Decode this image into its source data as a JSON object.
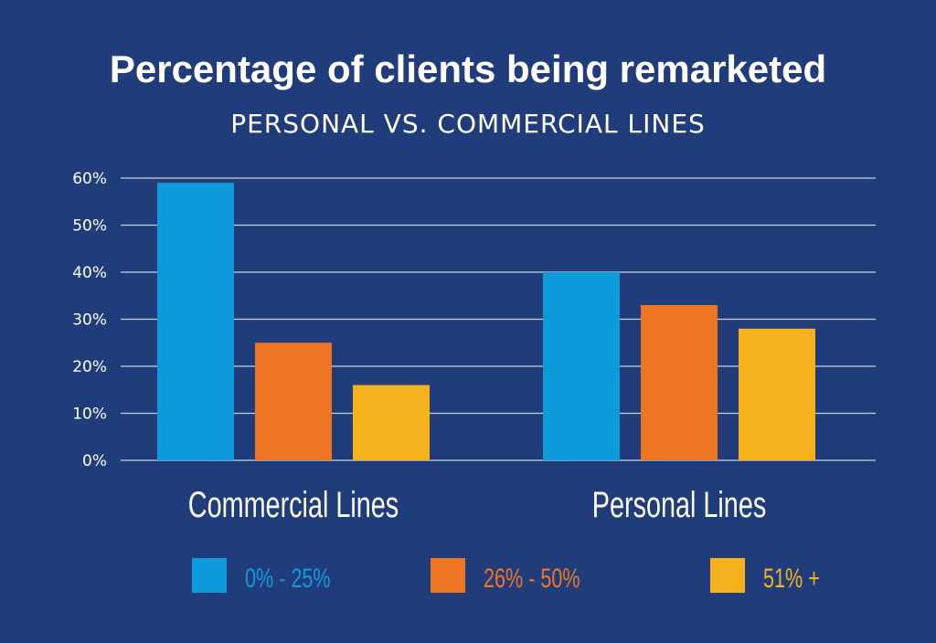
{
  "header": {
    "title": "Percentage of clients being remarketed",
    "subtitle": "PERSONAL VS. COMMERCIAL LINES"
  },
  "chart_data": {
    "type": "bar",
    "title": "Percentage of clients being remarketed",
    "subtitle": "PERSONAL VS. COMMERCIAL LINES",
    "categories": [
      "Commercial Lines",
      "Personal Lines"
    ],
    "series": [
      {
        "name": "0% - 25%",
        "color": "#0f9bdb",
        "values": [
          59,
          40
        ]
      },
      {
        "name": "26% - 50%",
        "color": "#ee7623",
        "values": [
          25,
          33
        ]
      },
      {
        "name": "51% +",
        "color": "#f5b21c",
        "values": [
          16,
          28
        ]
      }
    ],
    "y_ticks": [
      "0%",
      "10%",
      "20%",
      "30%",
      "40%",
      "50%",
      "60%"
    ],
    "ylim": [
      0,
      60
    ],
    "grid": true,
    "legend_position": "bottom",
    "colors": {
      "background": "#213c7a",
      "gridline": "#c9d0e4",
      "text": "#ffffff"
    }
  }
}
